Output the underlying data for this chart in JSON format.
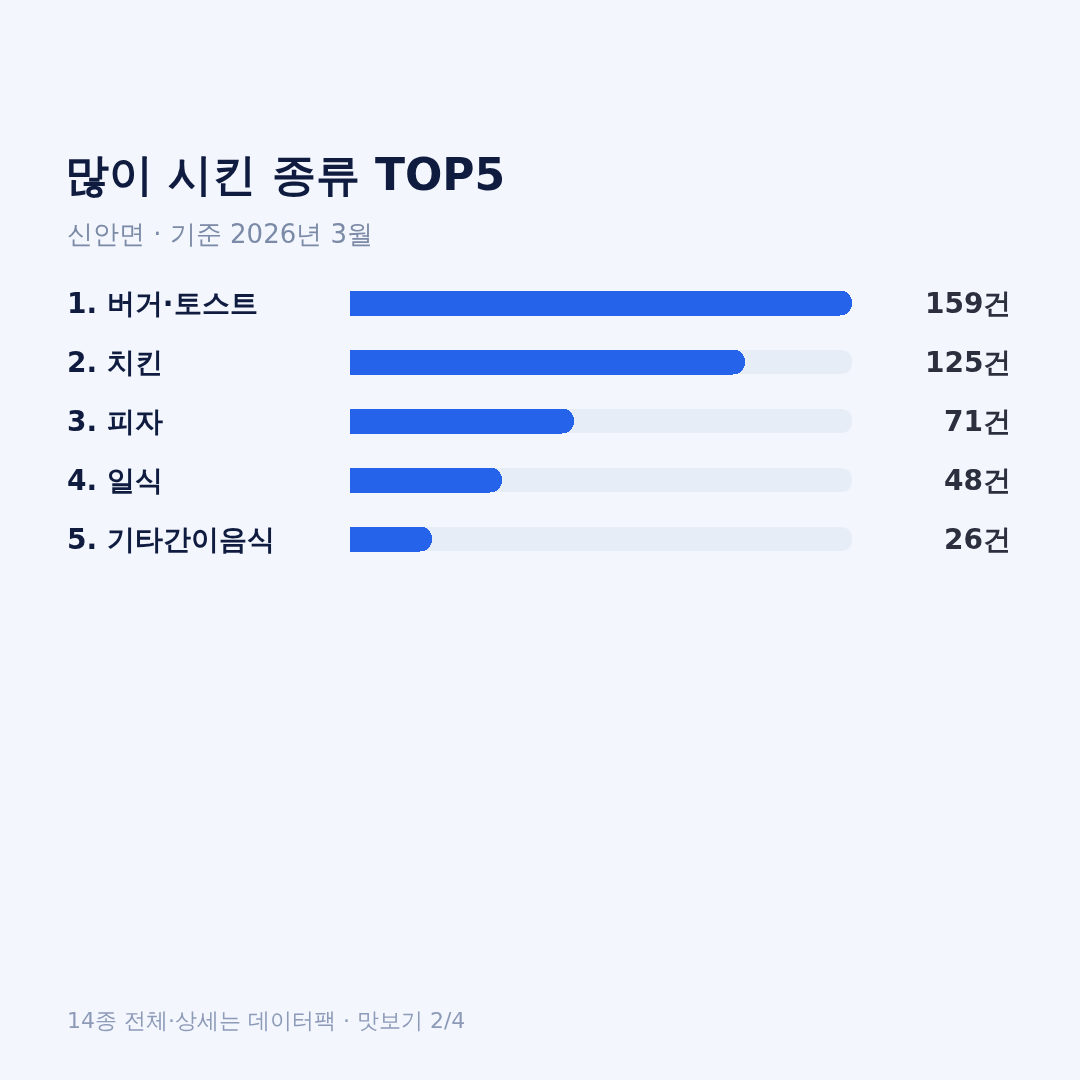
{
  "chart_data": {
    "type": "bar",
    "orientation": "horizontal",
    "title": "많이 시킨 종류 TOP5",
    "subtitle": "신안면 · 기준 2026년 3월",
    "categories": [
      "1. 버거·토스트",
      "2. 치킨",
      "3. 피자",
      "4. 일식",
      "5. 기타간이음식"
    ],
    "values": [
      159,
      125,
      71,
      48,
      26
    ],
    "value_labels": [
      "159건",
      "125건",
      "71건",
      "48건",
      "26건"
    ],
    "color": "#2563eb",
    "annotations": [
      "14종 전체·상세는 데이터팩 · 맛보기 2/4"
    ],
    "grid": false
  }
}
